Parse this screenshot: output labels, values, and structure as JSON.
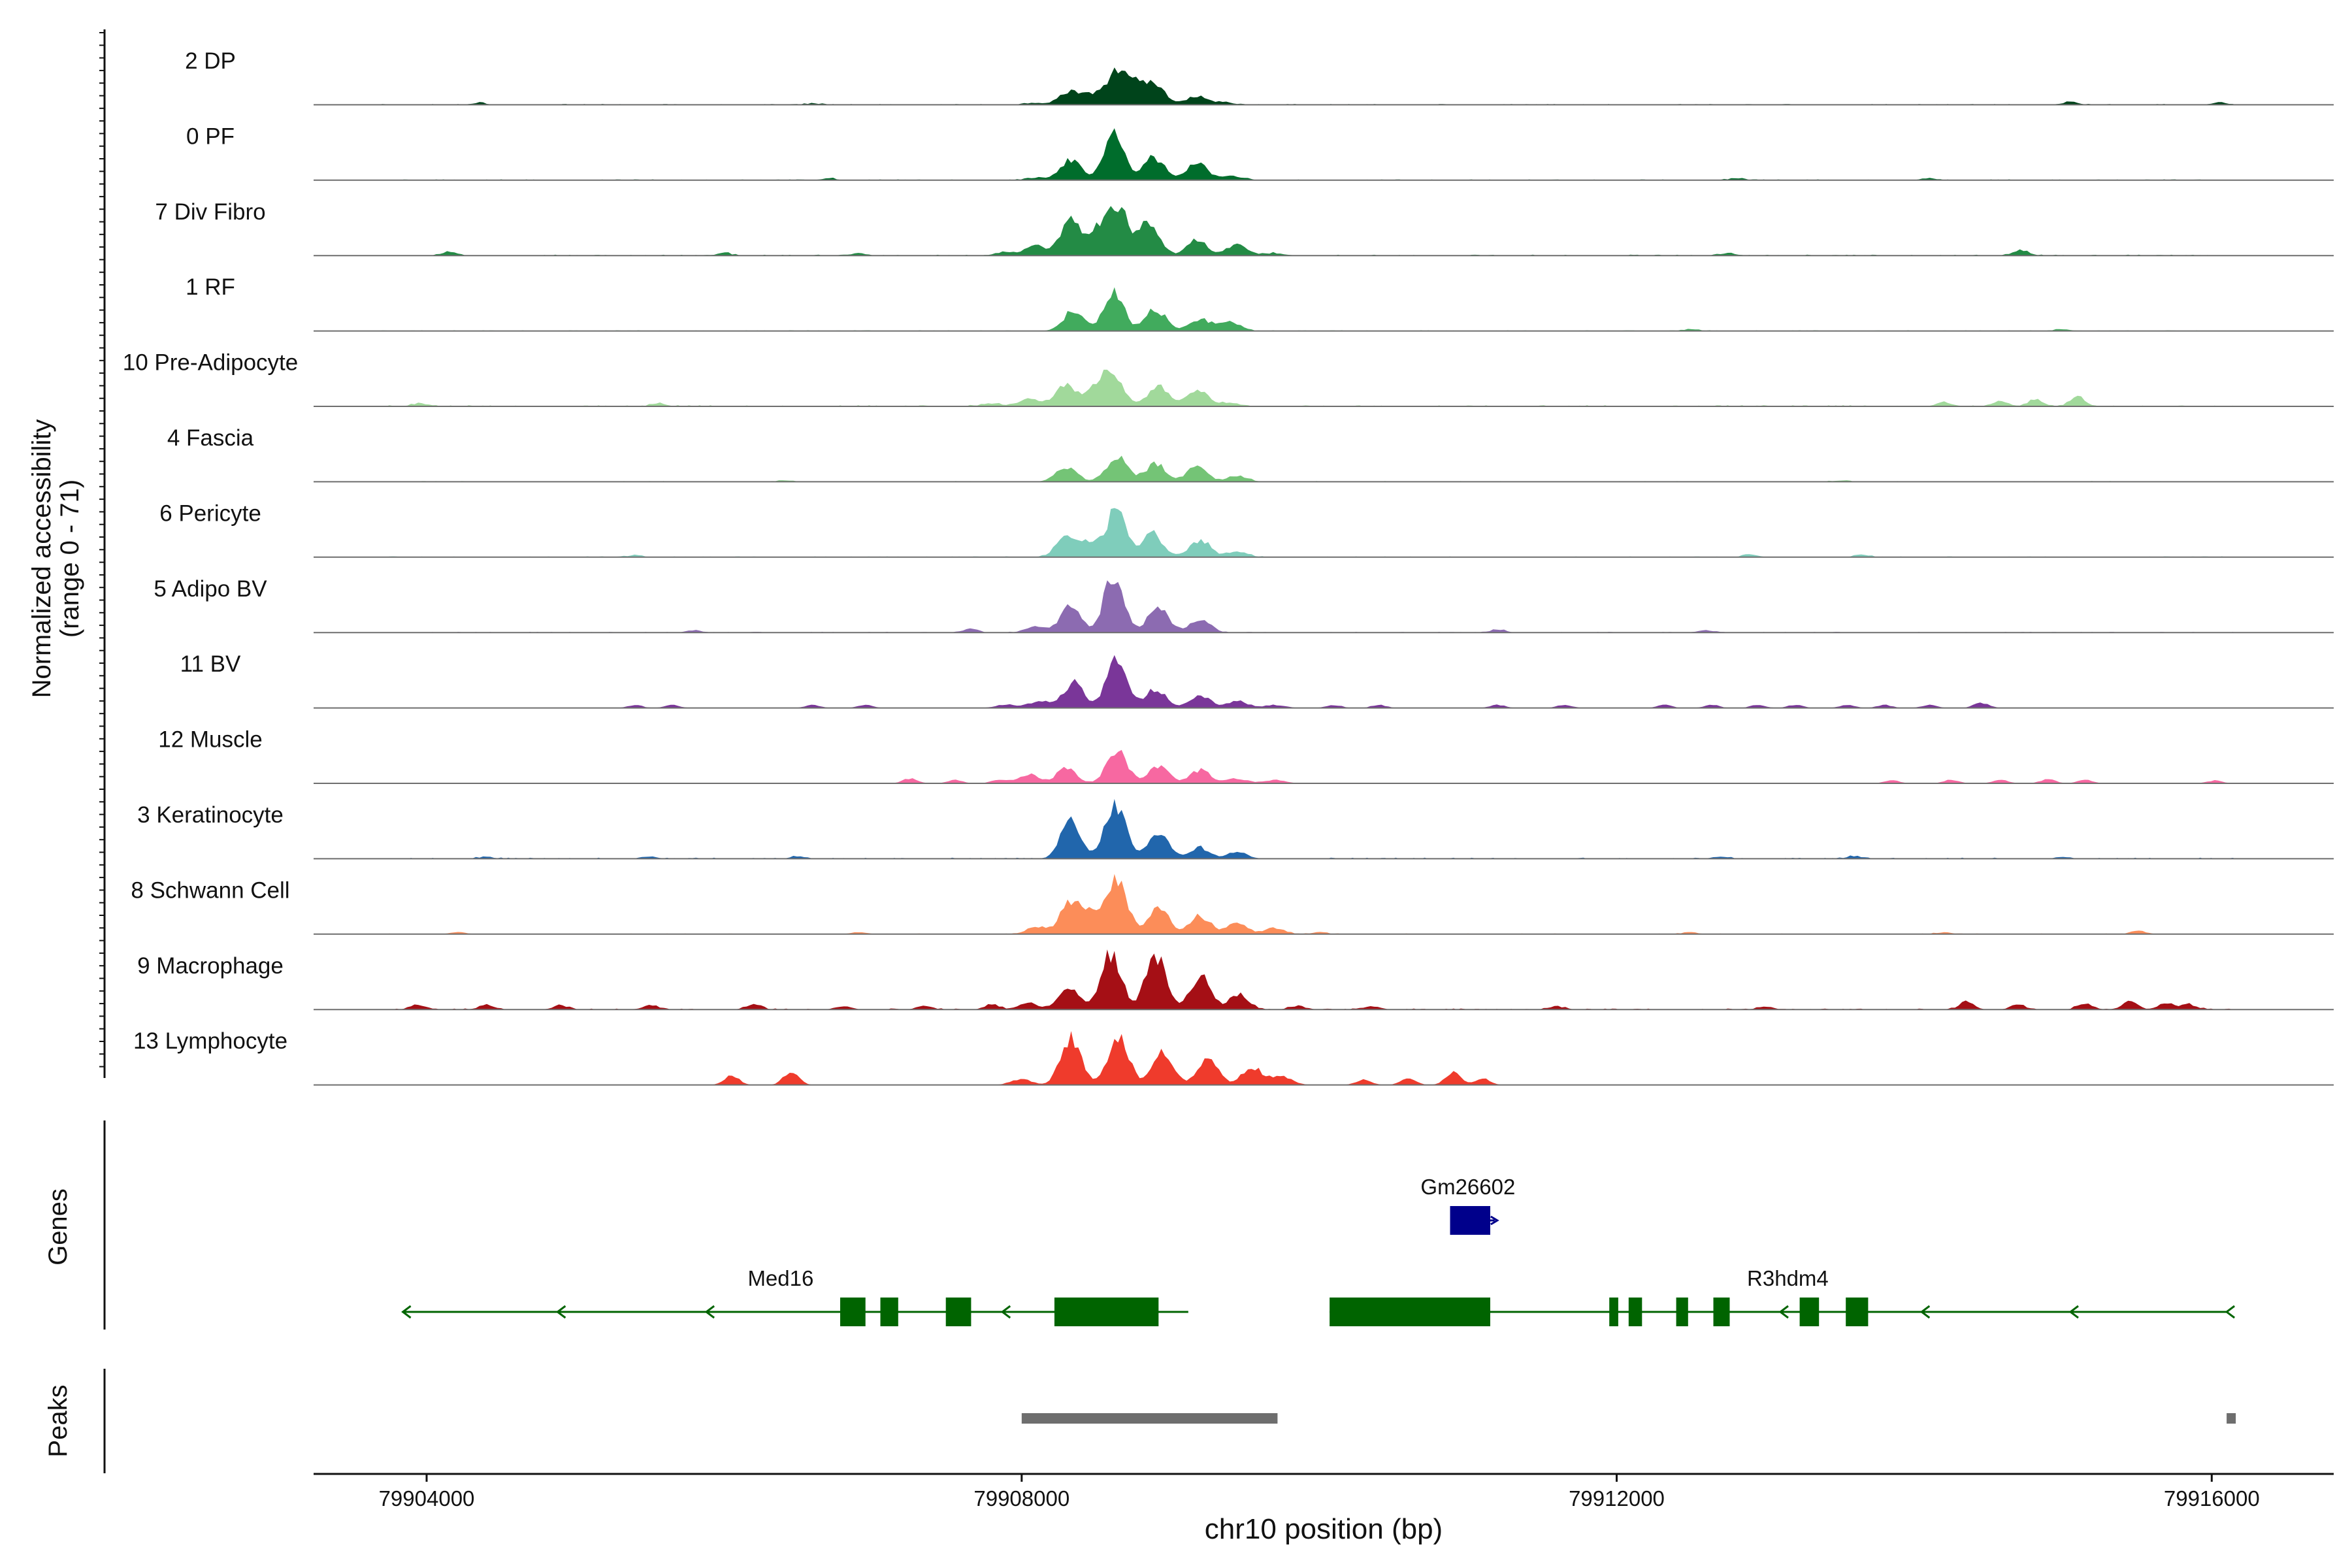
{
  "chart_data": {
    "type": "area",
    "title": "",
    "ylabel": "Normalized accessibility",
    "ylabel_range": "(range 0 - 71)",
    "y_range": [
      0,
      71
    ],
    "xlabel": "chr10 position (bp)",
    "x_range": [
      79903240,
      79916820
    ],
    "x_ticks": [
      79904000,
      79908000,
      79912000,
      79916000
    ],
    "x_tick_labels": [
      "79904000",
      "79908000",
      "79912000",
      "79916000"
    ],
    "series": [
      {
        "name": "2 DP",
        "color": "#00441b",
        "bg": 0.014,
        "minor": [
          [
            79904350,
            0.03
          ],
          [
            79906600,
            0.02
          ],
          [
            79915050,
            0.05
          ],
          [
            79916050,
            0.04
          ]
        ],
        "peaks": [
          [
            79908100,
            0.03
          ],
          [
            79908320,
            0.22
          ],
          [
            79908480,
            0.15
          ],
          [
            79908640,
            0.5
          ],
          [
            79908760,
            0.32
          ],
          [
            79908900,
            0.33
          ],
          [
            79909180,
            0.14
          ],
          [
            79909350,
            0.04
          ]
        ]
      },
      {
        "name": "0 PF",
        "color": "#006d2c",
        "bg": 0.014,
        "minor": [
          [
            79906700,
            0.03
          ],
          [
            79912800,
            0.03
          ],
          [
            79914100,
            0.03
          ]
        ],
        "peaks": [
          [
            79908100,
            0.04
          ],
          [
            79908330,
            0.34
          ],
          [
            79908620,
            0.75
          ],
          [
            79908890,
            0.38
          ],
          [
            79909180,
            0.31
          ],
          [
            79909420,
            0.07
          ]
        ]
      },
      {
        "name": "7 Div Fibro",
        "color": "#238b45",
        "bg": 0.016,
        "minor": [
          [
            79904150,
            0.06
          ],
          [
            79906000,
            0.04
          ],
          [
            79906900,
            0.04
          ],
          [
            79912750,
            0.04
          ],
          [
            79914720,
            0.09
          ]
        ],
        "peaks": [
          [
            79907900,
            0.06
          ],
          [
            79908100,
            0.17
          ],
          [
            79908330,
            0.55
          ],
          [
            79908500,
            0.4
          ],
          [
            79908650,
            0.76
          ],
          [
            79908860,
            0.55
          ],
          [
            79909180,
            0.25
          ],
          [
            79909450,
            0.18
          ],
          [
            79909700,
            0.04
          ]
        ]
      },
      {
        "name": "1 RF",
        "color": "#41ab5d",
        "bg": 0.012,
        "minor": [
          [
            79912500,
            0.03
          ],
          [
            79915000,
            0.03
          ]
        ],
        "peaks": [
          [
            79908350,
            0.35
          ],
          [
            79908620,
            0.62
          ],
          [
            79908900,
            0.36
          ],
          [
            79909200,
            0.2
          ],
          [
            79909400,
            0.15
          ]
        ]
      },
      {
        "name": "10 Pre-Adipocyte",
        "color": "#a1d99b",
        "bg": 0.02,
        "minor": [
          [
            79903950,
            0.05
          ],
          [
            79905560,
            0.05
          ],
          [
            79914200,
            0.06
          ],
          [
            79914580,
            0.09
          ],
          [
            79914820,
            0.11
          ],
          [
            79915100,
            0.15
          ]
        ],
        "peaks": [
          [
            79907800,
            0.04
          ],
          [
            79908050,
            0.13
          ],
          [
            79908300,
            0.36
          ],
          [
            79908500,
            0.3
          ],
          [
            79908620,
            0.48
          ],
          [
            79908920,
            0.33
          ],
          [
            79909180,
            0.28
          ],
          [
            79909400,
            0.06
          ]
        ]
      },
      {
        "name": "4 Fascia",
        "color": "#74c476",
        "bg": 0.012,
        "minor": [
          [
            79906400,
            0.02
          ],
          [
            79913500,
            0.02
          ]
        ],
        "peaks": [
          [
            79908300,
            0.25
          ],
          [
            79908640,
            0.44
          ],
          [
            79908900,
            0.3
          ],
          [
            79909180,
            0.26
          ],
          [
            79909450,
            0.1
          ]
        ]
      },
      {
        "name": "6 Pericyte",
        "color": "#7fcdbb",
        "bg": 0.014,
        "minor": [
          [
            79905400,
            0.03
          ],
          [
            79912900,
            0.05
          ],
          [
            79913650,
            0.04
          ]
        ],
        "peaks": [
          [
            79908300,
            0.35
          ],
          [
            79908450,
            0.22
          ],
          [
            79908640,
            0.81
          ],
          [
            79908880,
            0.38
          ],
          [
            79909200,
            0.28
          ],
          [
            79909450,
            0.09
          ]
        ]
      },
      {
        "name": "5 Adipo BV",
        "color": "#8c6bb1",
        "bg": 0.012,
        "minor": [
          [
            79905800,
            0.04
          ],
          [
            79907650,
            0.06
          ],
          [
            79911200,
            0.05
          ],
          [
            79912600,
            0.04
          ]
        ],
        "peaks": [
          [
            79908100,
            0.1
          ],
          [
            79908330,
            0.43
          ],
          [
            79908620,
            0.94
          ],
          [
            79908920,
            0.45
          ],
          [
            79909200,
            0.22
          ]
        ]
      },
      {
        "name": "11 BV",
        "color": "#7a3699",
        "bg": 0.0,
        "minor": [
          [
            79905400,
            0.05
          ],
          [
            79905650,
            0.05
          ],
          [
            79906600,
            0.05
          ],
          [
            79906950,
            0.05
          ],
          [
            79910100,
            0.05
          ],
          [
            79910400,
            0.05
          ],
          [
            79911200,
            0.05
          ],
          [
            79911650,
            0.05
          ],
          [
            79912320,
            0.05
          ],
          [
            79912640,
            0.05
          ],
          [
            79912950,
            0.05
          ],
          [
            79913200,
            0.05
          ],
          [
            79913550,
            0.05
          ],
          [
            79913800,
            0.05
          ],
          [
            79914100,
            0.05
          ],
          [
            79914450,
            0.09
          ]
        ],
        "peaks": [
          [
            79907900,
            0.06
          ],
          [
            79908120,
            0.12
          ],
          [
            79908350,
            0.42
          ],
          [
            79908640,
            0.82
          ],
          [
            79908900,
            0.32
          ],
          [
            79909200,
            0.22
          ],
          [
            79909450,
            0.12
          ],
          [
            79909700,
            0.05
          ]
        ]
      },
      {
        "name": "12 Muscle",
        "color": "#f768a1",
        "bg": 0.0,
        "minor": [
          [
            79907250,
            0.08
          ],
          [
            79907550,
            0.06
          ],
          [
            79907850,
            0.07
          ],
          [
            79913850,
            0.05
          ],
          [
            79914250,
            0.06
          ],
          [
            79914580,
            0.06
          ],
          [
            79914900,
            0.07
          ],
          [
            79915150,
            0.06
          ],
          [
            79916020,
            0.05
          ]
        ],
        "peaks": [
          [
            79908050,
            0.15
          ],
          [
            79908300,
            0.24
          ],
          [
            79908640,
            0.56
          ],
          [
            79908920,
            0.28
          ],
          [
            79909200,
            0.22
          ],
          [
            79909450,
            0.08
          ],
          [
            79909700,
            0.06
          ]
        ]
      },
      {
        "name": "3 Keratinocyte",
        "color": "#2166ac",
        "bg": 0.018,
        "minor": [
          [
            79904400,
            0.03
          ],
          [
            79905500,
            0.04
          ],
          [
            79906500,
            0.04
          ],
          [
            79912700,
            0.04
          ],
          [
            79913600,
            0.04
          ],
          [
            79915000,
            0.03
          ]
        ],
        "peaks": [
          [
            79908330,
            0.6
          ],
          [
            79908630,
            0.92
          ],
          [
            79908920,
            0.42
          ],
          [
            79909200,
            0.18
          ],
          [
            79909450,
            0.1
          ]
        ]
      },
      {
        "name": "8 Schwann Cell",
        "color": "#fc8d59",
        "bg": 0.012,
        "minor": [
          [
            79904200,
            0.03
          ],
          [
            79906900,
            0.03
          ],
          [
            79910000,
            0.03
          ],
          [
            79912500,
            0.03
          ],
          [
            79914200,
            0.03
          ],
          [
            79915500,
            0.05
          ]
        ],
        "peaks": [
          [
            79908100,
            0.12
          ],
          [
            79908330,
            0.55
          ],
          [
            79908480,
            0.3
          ],
          [
            79908640,
            0.92
          ],
          [
            79908920,
            0.45
          ],
          [
            79909200,
            0.3
          ],
          [
            79909450,
            0.18
          ],
          [
            79909700,
            0.1
          ]
        ]
      },
      {
        "name": "9 Macrophage",
        "color": "#a50f15",
        "bg": 0.018,
        "minor": [
          [
            79903950,
            0.08
          ],
          [
            79904400,
            0.08
          ],
          [
            79904900,
            0.07
          ],
          [
            79905500,
            0.07
          ],
          [
            79906200,
            0.08
          ],
          [
            79906800,
            0.06
          ],
          [
            79907350,
            0.06
          ],
          [
            79907800,
            0.08
          ],
          [
            79909500,
            0.07
          ],
          [
            79909850,
            0.06
          ],
          [
            79910350,
            0.05
          ],
          [
            79911600,
            0.05
          ],
          [
            79913000,
            0.05
          ],
          [
            79914350,
            0.12
          ],
          [
            79914700,
            0.08
          ],
          [
            79915150,
            0.1
          ],
          [
            79915450,
            0.14
          ],
          [
            79915700,
            0.12
          ],
          [
            79915850,
            0.08
          ]
        ],
        "peaks": [
          [
            79908050,
            0.1
          ],
          [
            79908320,
            0.35
          ],
          [
            79908600,
            0.94
          ],
          [
            79908900,
            0.9
          ],
          [
            79909200,
            0.55
          ],
          [
            79909450,
            0.18
          ]
        ]
      },
      {
        "name": "13 Lymphocyte",
        "color": "#ef3b2c",
        "bg": 0.0,
        "minor": [
          [
            79906050,
            0.15
          ],
          [
            79906450,
            0.22
          ],
          [
            79910300,
            0.09
          ],
          [
            79910600,
            0.12
          ],
          [
            79910900,
            0.22
          ],
          [
            79911100,
            0.1
          ]
        ],
        "peaks": [
          [
            79908000,
            0.1
          ],
          [
            79908330,
            0.78
          ],
          [
            79908650,
            0.84
          ],
          [
            79908950,
            0.58
          ],
          [
            79909250,
            0.45
          ],
          [
            79909550,
            0.3
          ],
          [
            79909750,
            0.15
          ]
        ]
      }
    ],
    "genes": [
      {
        "name": "Gm26602",
        "color": "#00008b",
        "row": 1,
        "start": 79910880,
        "end": 79911180,
        "strand": "+",
        "label_pos": 79911000,
        "exons": [
          [
            79910880,
            79911150
          ]
        ]
      },
      {
        "name": "Med16",
        "color": "#006400",
        "row": 2,
        "start": 79903840,
        "end": 79909120,
        "strand": "-",
        "label_pos": 79906380,
        "exons": [
          [
            79906780,
            79906950
          ],
          [
            79907050,
            79907170
          ],
          [
            79907490,
            79907660
          ],
          [
            79908220,
            79908920
          ]
        ],
        "arrows": [
          79903840,
          79904880,
          79905880,
          79907870
        ]
      },
      {
        "name": "R3hdm4",
        "color": "#006400",
        "row": 2,
        "start": 79910070,
        "end": 79916100,
        "strand": "-",
        "label_pos": 79913150,
        "exons": [
          [
            79910070,
            79911150
          ],
          [
            79911950,
            79912010
          ],
          [
            79912080,
            79912170
          ],
          [
            79912400,
            79912480
          ],
          [
            79912650,
            79912760
          ],
          [
            79913230,
            79913360
          ],
          [
            79913540,
            79913690
          ]
        ],
        "arrows": [
          79913100,
          79914050,
          79915050,
          79916100
        ]
      }
    ],
    "peaks_track": [
      [
        79908000,
        79909720
      ],
      [
        79916100,
        79916160
      ]
    ],
    "panel_labels": {
      "genes": "Genes",
      "peaks": "Peaks"
    }
  }
}
